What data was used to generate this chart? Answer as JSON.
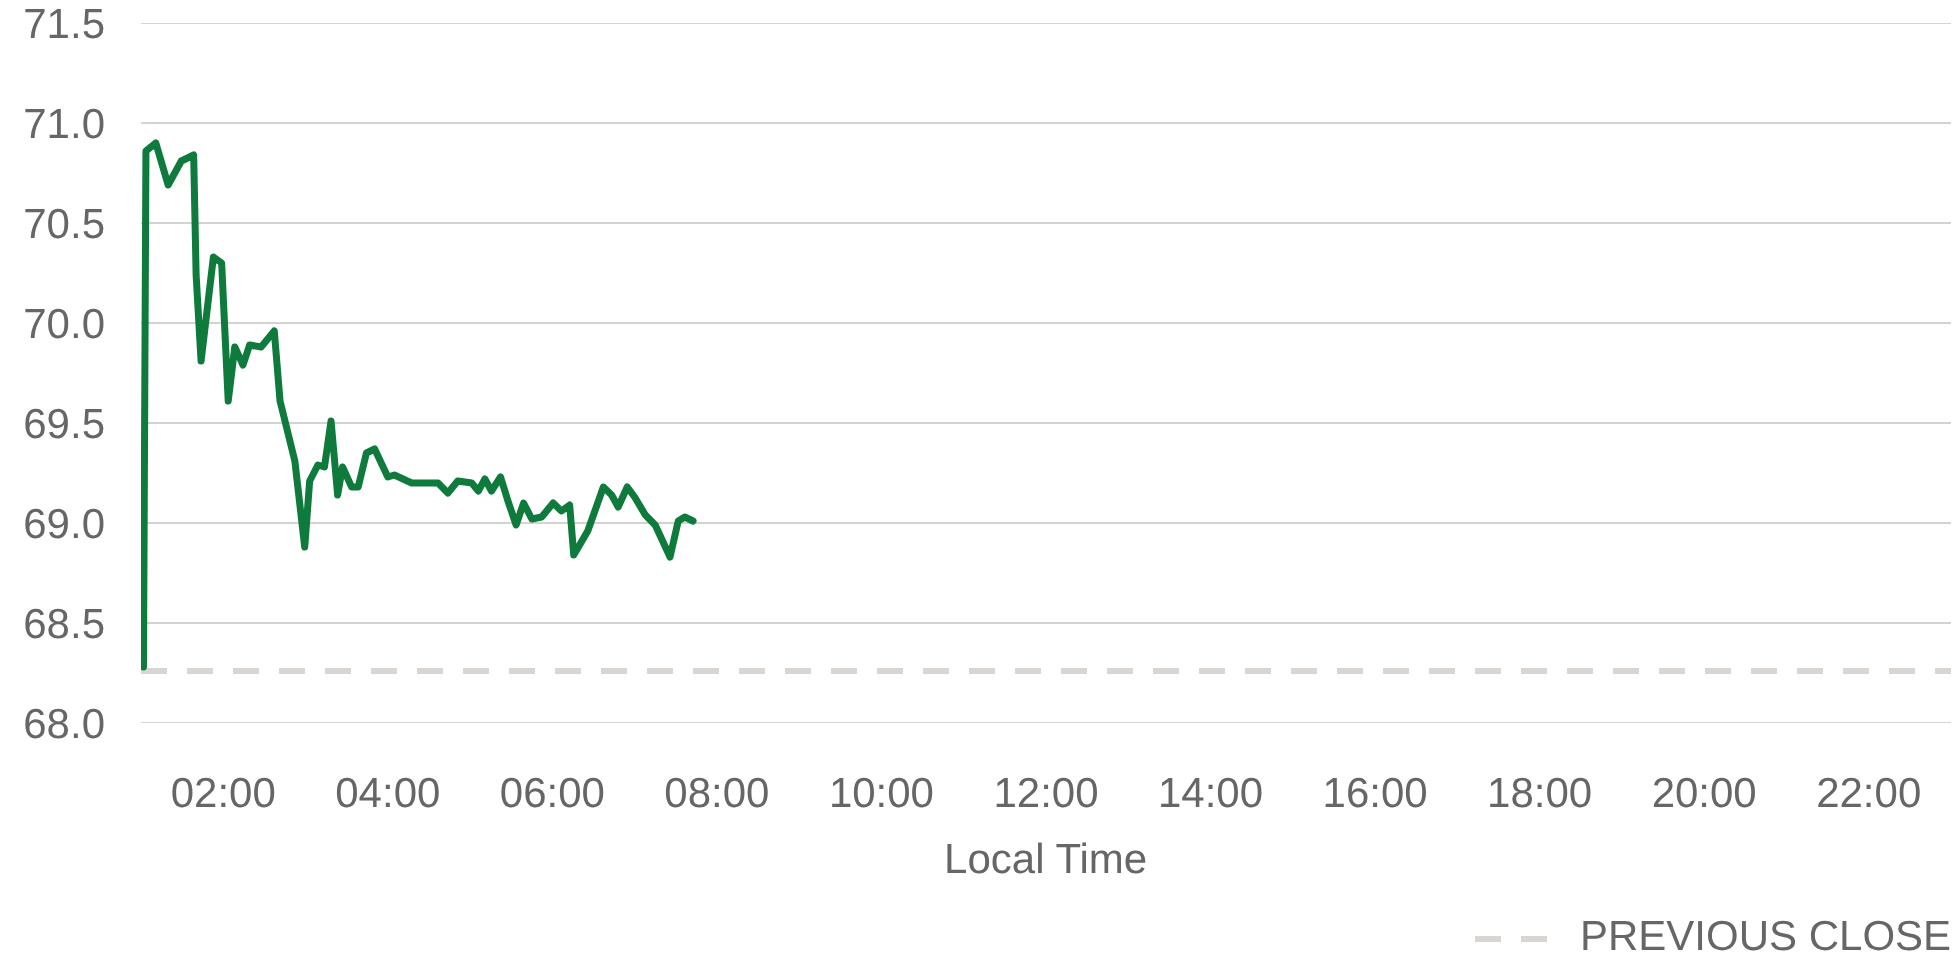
{
  "chart_data": {
    "type": "line",
    "xlabel": "Local Time",
    "x": [
      1.03,
      1.06,
      1.18,
      1.33,
      1.49,
      1.64,
      1.67,
      1.73,
      1.88,
      1.98,
      2.06,
      2.14,
      2.24,
      2.32,
      2.46,
      2.62,
      2.69,
      2.87,
      2.99,
      3.05,
      3.15,
      3.23,
      3.31,
      3.39,
      3.45,
      3.56,
      3.64,
      3.74,
      3.84,
      4.0,
      4.08,
      4.29,
      4.61,
      4.73,
      4.85,
      5.02,
      5.1,
      5.18,
      5.26,
      5.37,
      5.46,
      5.56,
      5.65,
      5.75,
      5.87,
      6.01,
      6.11,
      6.21,
      6.26,
      6.43,
      6.62,
      6.72,
      6.8,
      6.91,
      7.0,
      7.13,
      7.25,
      7.43,
      7.53,
      7.61,
      7.71
    ],
    "series": [
      {
        "color": "#0e7a3c",
        "values": [
          68.28,
          70.86,
          70.9,
          70.69,
          70.81,
          70.84,
          70.24,
          69.81,
          70.33,
          70.3,
          69.61,
          69.88,
          69.79,
          69.89,
          69.88,
          69.96,
          69.61,
          69.31,
          68.88,
          69.21,
          69.29,
          69.28,
          69.51,
          69.14,
          69.28,
          69.18,
          69.18,
          69.35,
          69.37,
          69.23,
          69.24,
          69.2,
          69.2,
          69.15,
          69.21,
          69.2,
          69.16,
          69.22,
          69.16,
          69.23,
          69.11,
          68.99,
          69.1,
          69.02,
          69.03,
          69.1,
          69.06,
          69.09,
          68.84,
          68.96,
          69.18,
          69.14,
          69.08,
          69.18,
          69.13,
          69.04,
          68.99,
          68.83,
          69.01,
          69.03,
          69.01
        ]
      }
    ],
    "xlim": [
      1,
      23
    ],
    "ylim": [
      68,
      71.5
    ],
    "xticks": [
      {
        "value": 2,
        "label": "02:00"
      },
      {
        "value": 4,
        "label": "04:00"
      },
      {
        "value": 6,
        "label": "06:00"
      },
      {
        "value": 8,
        "label": "08:00"
      },
      {
        "value": 10,
        "label": "10:00"
      },
      {
        "value": 12,
        "label": "12:00"
      },
      {
        "value": 14,
        "label": "14:00"
      },
      {
        "value": 16,
        "label": "16:00"
      },
      {
        "value": 18,
        "label": "18:00"
      },
      {
        "value": 20,
        "label": "20:00"
      },
      {
        "value": 22,
        "label": "22:00"
      }
    ],
    "yticks": [
      {
        "value": 68,
        "label": "68.0"
      },
      68.5,
      {
        "value": 69,
        "label": "69.0"
      },
      69.5,
      {
        "value": 70,
        "label": "70.0"
      },
      70.5,
      {
        "value": 71,
        "label": "71.0"
      },
      71.5
    ],
    "ref_lines": [
      {
        "axis": "y",
        "value": 68.26,
        "label": "PREVIOUS CLOSE",
        "color": "#d9d5d2",
        "line_style": "dashed"
      }
    ],
    "grid": "y",
    "legend": "bottom right",
    "line_style": "solid"
  }
}
